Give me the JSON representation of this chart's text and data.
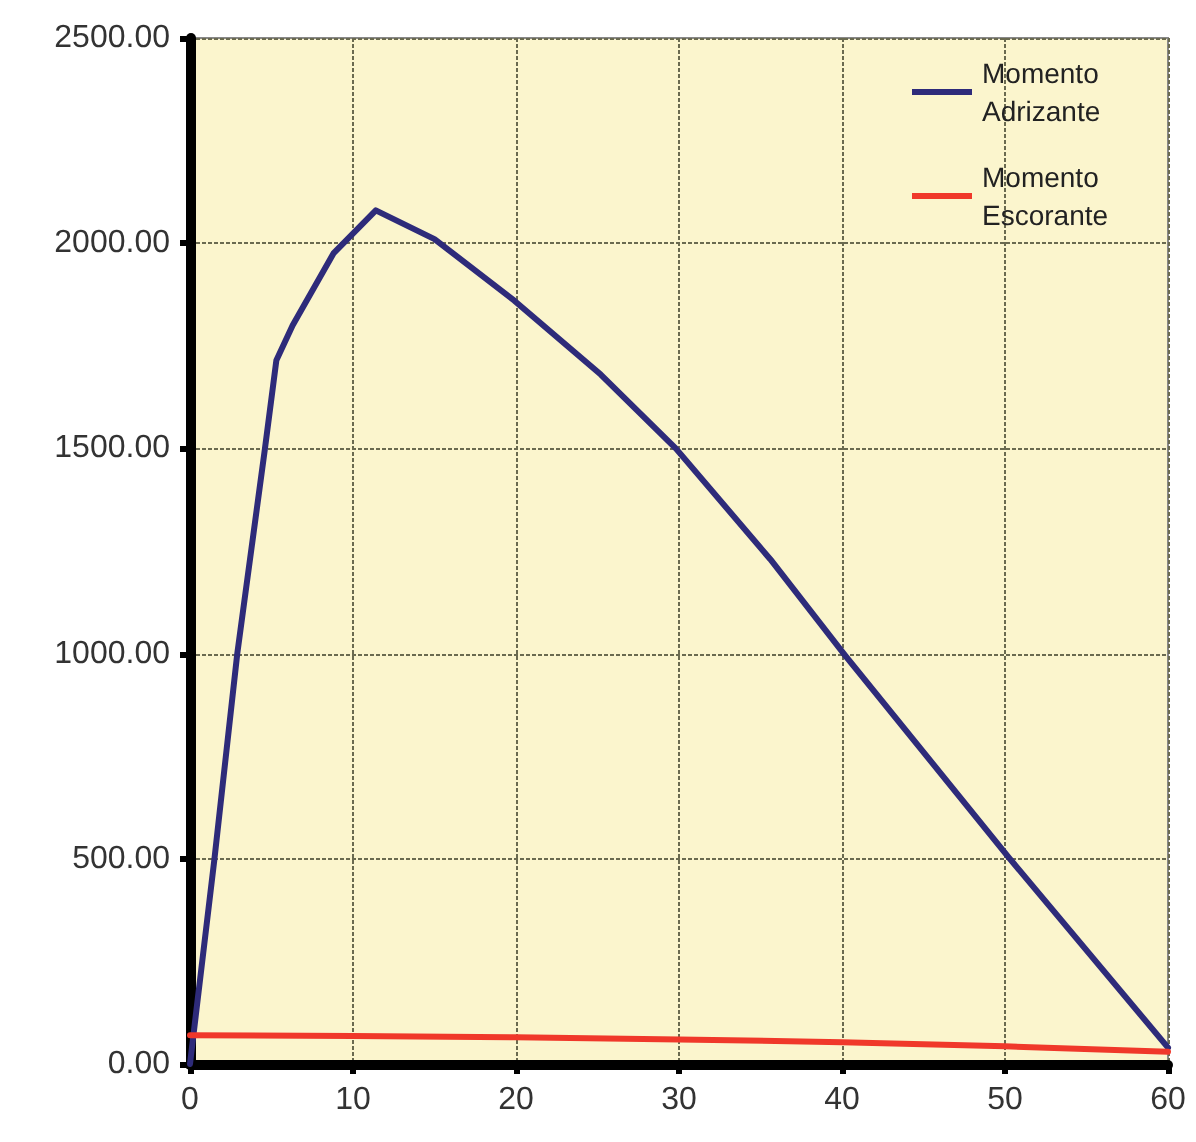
{
  "chart_data": {
    "type": "line",
    "x": [
      0,
      1.5,
      2.9,
      4.6,
      5.3,
      6.3,
      8.8,
      11.4,
      15,
      19.9,
      25.2,
      29.8,
      35.6,
      40.2,
      50.3,
      60
    ],
    "series": [
      {
        "name": "Momento Adrizante",
        "color": "#2e2b7a",
        "values": [
          0,
          500,
          1000,
          1500,
          1715,
          1800,
          1975,
          2080,
          2010,
          1860,
          1680,
          1500,
          1230,
          995,
          500,
          40
        ]
      },
      {
        "name": "Momento Escorante",
        "color": "#f0382a",
        "x": [
          0,
          10,
          20,
          30,
          40,
          50,
          60
        ],
        "values": [
          70,
          68,
          65,
          60,
          53,
          43,
          30
        ]
      }
    ],
    "xlim": [
      0,
      60
    ],
    "xticks": [
      0,
      10,
      20,
      30,
      40,
      50,
      60
    ],
    "ylim": [
      0,
      2500
    ],
    "yticks": [
      {
        "value": 0,
        "label": "0.00"
      },
      {
        "value": 500,
        "label": "500.00"
      },
      {
        "value": 1000,
        "label": "1000.00"
      },
      {
        "value": 1500,
        "label": "1500.00"
      },
      {
        "value": 2000,
        "label": "2000.00"
      },
      {
        "value": 2500,
        "label": "2500.00"
      }
    ],
    "grid": true,
    "legend": "top right",
    "marker": "none",
    "line_style": "solid"
  }
}
